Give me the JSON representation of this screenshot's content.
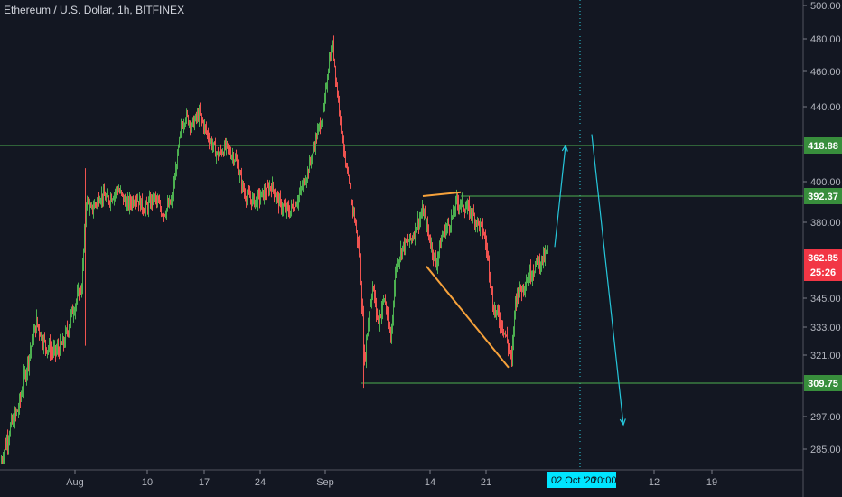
{
  "title": "Ethereum / U.S. Dollar, 1h, BITFINEX",
  "colors": {
    "background": "#131722",
    "up": "#26a69a",
    "up_bar": "#4caf50",
    "down": "#ef5350",
    "grid": "#363a45",
    "hline": "#4caf50",
    "trend": "#f7a23b",
    "arrow": "#26c6da",
    "price_tag": "#f23645",
    "level_tag": "#388e3c",
    "date_tag": "#00e5ff"
  },
  "chart_data": {
    "type": "candlestick",
    "ylim": [
      279,
      503
    ],
    "y_ticks": [
      500,
      480,
      460,
      440,
      400,
      380,
      345,
      333,
      321,
      297,
      285
    ],
    "y_tick_labels": [
      "500.00",
      "480.00",
      "460.00",
      "440.00",
      "400.00",
      "380.00",
      "345.00",
      "333.00",
      "321.00",
      "297.00",
      "285.00"
    ],
    "x_ticks": [
      "Aug",
      "10",
      "17",
      "24",
      "Sep",
      "14",
      "21",
      "12",
      "19"
    ],
    "date_tag": [
      "02 Oct '20",
      "20:00"
    ],
    "current_price": "362.85",
    "countdown": "25:26",
    "levels": [
      {
        "label": "418.88",
        "value": 418.88
      },
      {
        "label": "392.37",
        "value": 392.37
      },
      {
        "label": "309.75",
        "value": 309.75
      }
    ],
    "price_path": [
      [
        0,
        279
      ],
      [
        10,
        292
      ],
      [
        20,
        300
      ],
      [
        30,
        318
      ],
      [
        40,
        335
      ],
      [
        50,
        325
      ],
      [
        60,
        322
      ],
      [
        70,
        326
      ],
      [
        80,
        340
      ],
      [
        90,
        350
      ],
      [
        95,
        390
      ],
      [
        100,
        385
      ],
      [
        110,
        393
      ],
      [
        120,
        391
      ],
      [
        130,
        396
      ],
      [
        140,
        388
      ],
      [
        150,
        392
      ],
      [
        160,
        386
      ],
      [
        170,
        392
      ],
      [
        180,
        384
      ],
      [
        190,
        390
      ],
      [
        196,
        413
      ],
      [
        200,
        428
      ],
      [
        205,
        435
      ],
      [
        212,
        430
      ],
      [
        220,
        436
      ],
      [
        230,
        424
      ],
      [
        240,
        414
      ],
      [
        250,
        418
      ],
      [
        260,
        412
      ],
      [
        270,
        394
      ],
      [
        280,
        390
      ],
      [
        290,
        393
      ],
      [
        300,
        398
      ],
      [
        310,
        388
      ],
      [
        320,
        385
      ],
      [
        330,
        392
      ],
      [
        340,
        405
      ],
      [
        350,
        424
      ],
      [
        358,
        438
      ],
      [
        364,
        468
      ],
      [
        368,
        476
      ],
      [
        372,
        452
      ],
      [
        378,
        428
      ],
      [
        382,
        408
      ],
      [
        388,
        392
      ],
      [
        392,
        382
      ],
      [
        398,
        362
      ],
      [
        403,
        318
      ],
      [
        408,
        340
      ],
      [
        412,
        350
      ],
      [
        418,
        335
      ],
      [
        425,
        345
      ],
      [
        432,
        328
      ],
      [
        438,
        360
      ],
      [
        445,
        368
      ],
      [
        455,
        372
      ],
      [
        462,
        380
      ],
      [
        468,
        385
      ],
      [
        475,
        372
      ],
      [
        482,
        360
      ],
      [
        490,
        375
      ],
      [
        498,
        380
      ],
      [
        505,
        390
      ],
      [
        512,
        388
      ],
      [
        520,
        385
      ],
      [
        528,
        380
      ],
      [
        535,
        375
      ],
      [
        540,
        362
      ],
      [
        545,
        342
      ],
      [
        550,
        338
      ],
      [
        556,
        334
      ],
      [
        562,
        325
      ],
      [
        566,
        318
      ],
      [
        570,
        345
      ],
      [
        578,
        350
      ],
      [
        586,
        356
      ],
      [
        594,
        360
      ],
      [
        600,
        362
      ],
      [
        606,
        365
      ]
    ],
    "trendlines": [
      [
        [
          468,
          392.37
        ],
        [
          510,
          394.4
        ]
      ],
      [
        [
          472,
          359
        ],
        [
          563,
          316
        ]
      ]
    ],
    "arrows": [
      {
        "from": [
          614,
          368
        ],
        "to": [
          626,
          418.88
        ]
      },
      {
        "from": [
          655,
          425
        ],
        "to": [
          690,
          294
        ]
      }
    ],
    "level_line_starts": [
      0,
      510,
      400
    ],
    "vline_x": 642
  }
}
